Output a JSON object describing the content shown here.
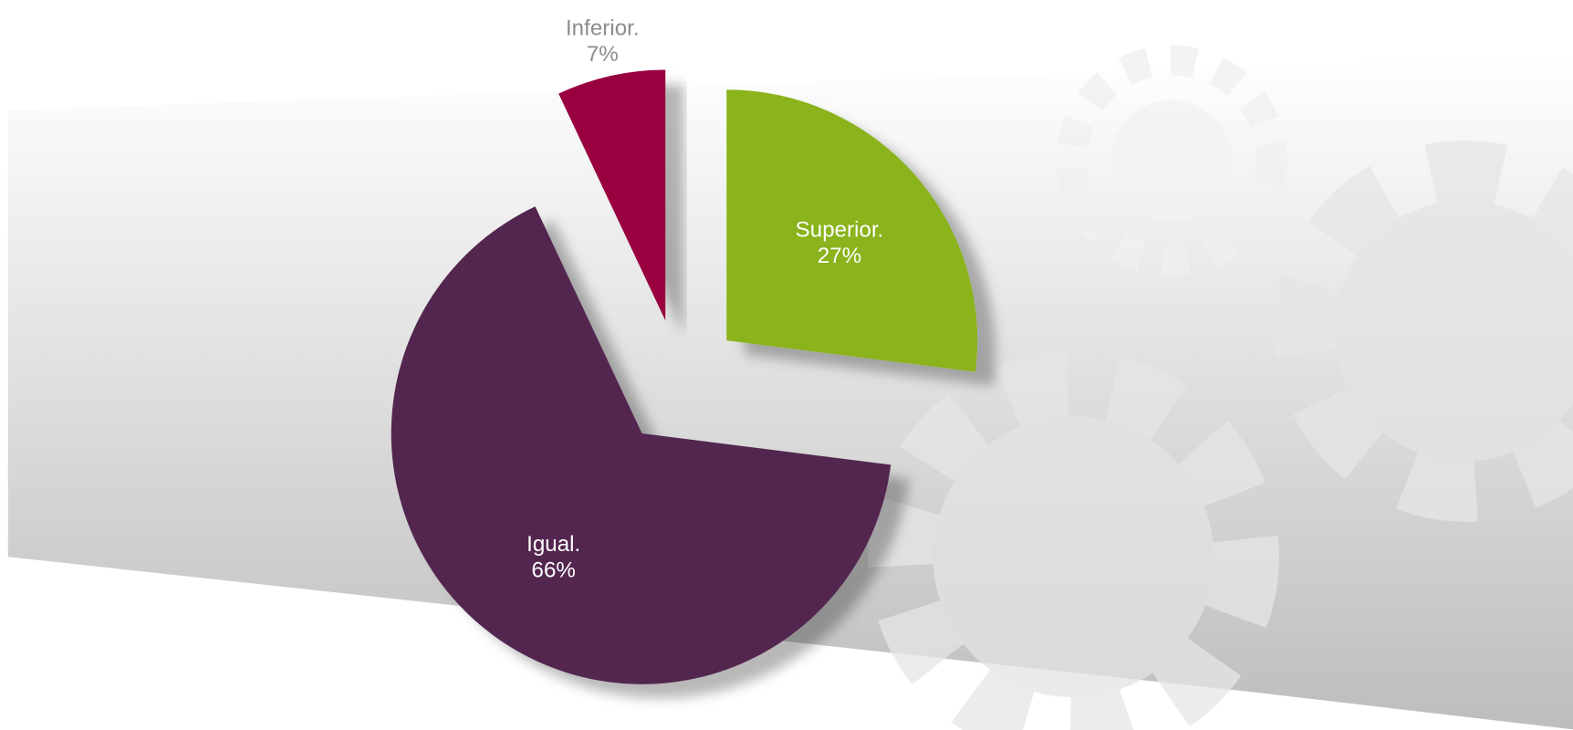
{
  "chart_data": {
    "type": "pie",
    "categories": [
      "Superior.",
      "Igual.",
      "Inferior."
    ],
    "values": [
      27,
      66,
      7
    ],
    "value_labels": [
      "27%",
      "66%",
      "7%"
    ],
    "colors": [
      "#8ab31f",
      "#52274f",
      "#990040"
    ]
  }
}
